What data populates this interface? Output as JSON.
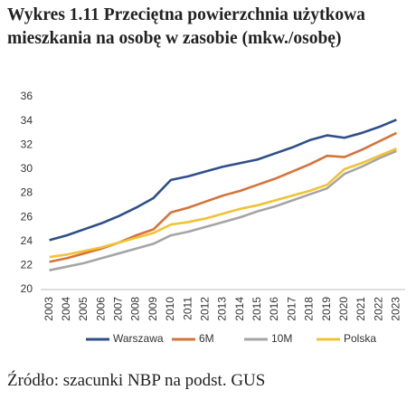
{
  "chart_data": {
    "type": "line",
    "title": "Wykres 1.11 Przeciętna powierzchnia użytkowa mieszkania na osobę w zasobie (mkw./osobę)",
    "source": "Źródło: szacunki NBP na podst. GUS",
    "categories": [
      "2003",
      "2004",
      "2005",
      "2006",
      "2007",
      "2008",
      "2009",
      "2010",
      "2011",
      "2012",
      "2013",
      "2014",
      "2015",
      "2016",
      "2017",
      "2018",
      "2019",
      "2020",
      "2021",
      "2022",
      "2023"
    ],
    "series": [
      {
        "name": "Warszawa",
        "color": "#2e4f8a",
        "values": [
          24.1,
          24.5,
          25.0,
          25.5,
          26.1,
          26.8,
          27.6,
          29.1,
          29.4,
          29.8,
          30.2,
          30.5,
          30.8,
          31.3,
          31.8,
          32.4,
          32.8,
          32.6,
          33.0,
          33.5,
          34.1
        ]
      },
      {
        "name": "6M",
        "color": "#d5733a",
        "values": [
          22.3,
          22.6,
          23.0,
          23.4,
          23.9,
          24.5,
          25.0,
          26.4,
          26.8,
          27.3,
          27.8,
          28.2,
          28.7,
          29.2,
          29.8,
          30.4,
          31.1,
          31.0,
          31.6,
          32.3,
          33.0
        ]
      },
      {
        "name": "10M",
        "color": "#a5a5a5",
        "values": [
          21.6,
          21.9,
          22.2,
          22.6,
          23.0,
          23.4,
          23.8,
          24.5,
          24.8,
          25.2,
          25.6,
          26.0,
          26.5,
          26.9,
          27.4,
          27.9,
          28.4,
          29.6,
          30.2,
          30.9,
          31.5
        ]
      },
      {
        "name": "Polska",
        "color": "#f2c232",
        "values": [
          22.7,
          22.9,
          23.2,
          23.5,
          23.9,
          24.3,
          24.7,
          25.4,
          25.6,
          25.9,
          26.3,
          26.7,
          27.0,
          27.4,
          27.8,
          28.2,
          28.7,
          30.0,
          30.5,
          31.1,
          31.7
        ]
      }
    ],
    "ylim": [
      20,
      36
    ],
    "yticks": [
      20,
      22,
      24,
      26,
      28,
      30,
      32,
      34,
      36
    ],
    "grid": false
  }
}
